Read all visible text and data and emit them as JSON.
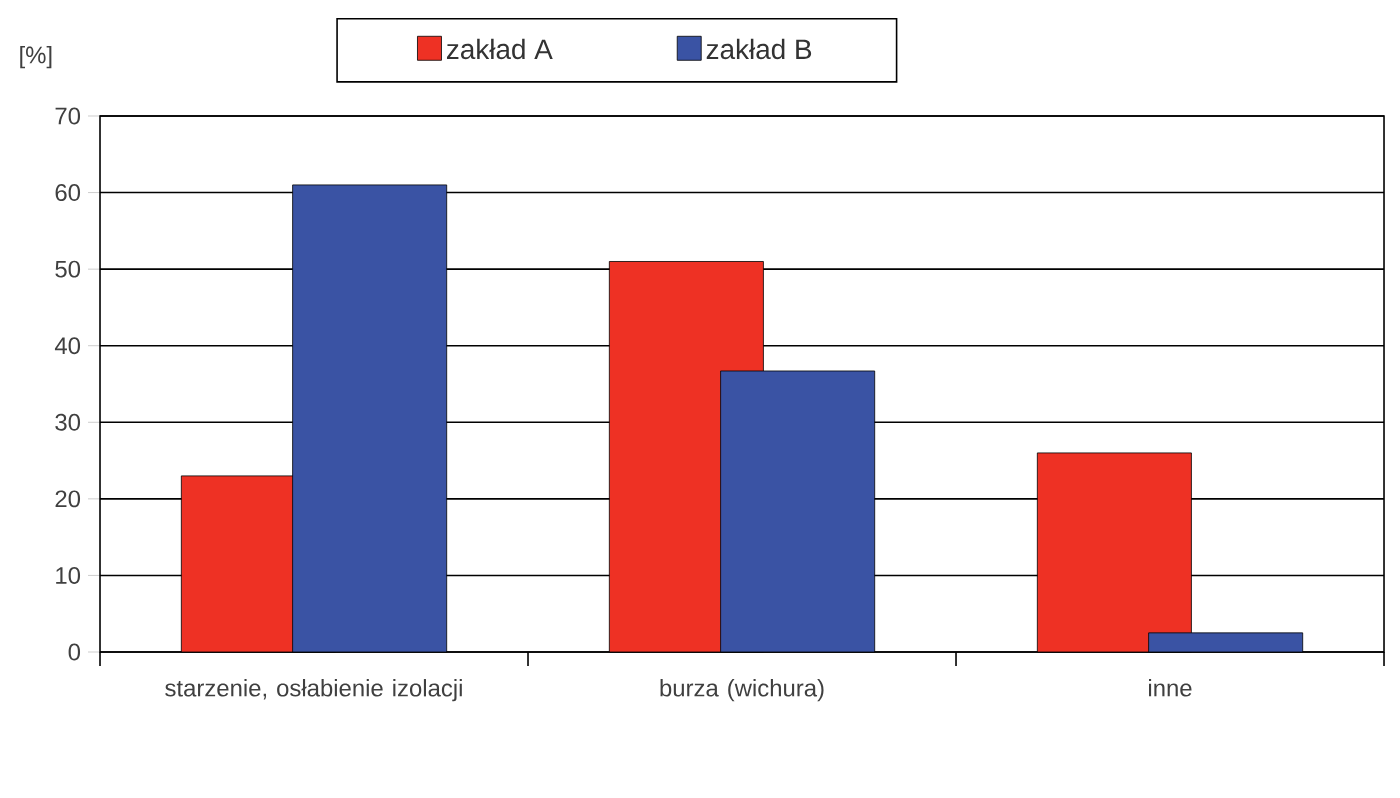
{
  "chart_data": {
    "type": "bar",
    "ylabel": "[%]",
    "categories": [
      "starzenie, osłabienie izolacji",
      "burza (wichura)",
      "inne"
    ],
    "series": [
      {
        "name": "zakład A",
        "color": "#ee3124",
        "values": [
          23,
          51,
          26
        ]
      },
      {
        "name": "zakład B",
        "color": "#3a53a4",
        "values": [
          61,
          36.7,
          2.5
        ]
      }
    ],
    "ylim": [
      0,
      70
    ],
    "yticks": [
      0,
      10,
      20,
      30,
      40,
      50,
      60,
      70
    ],
    "grid": "y",
    "legend": "top"
  }
}
